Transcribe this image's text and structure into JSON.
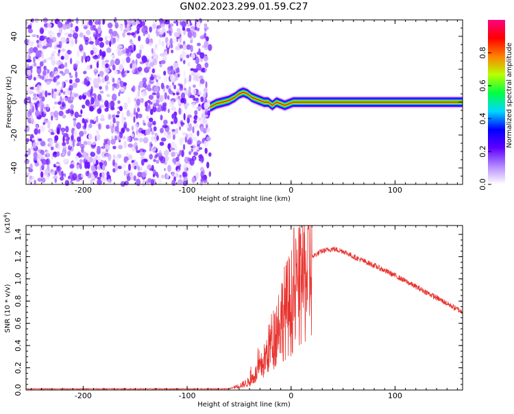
{
  "title": "GN02.2023.299.01.59.C27",
  "chart_data": [
    {
      "type": "heatmap",
      "title": "GN02.2023.299.01.59.C27",
      "xlabel": "Height of straight line (km)",
      "ylabel": "Frequency (Hz)",
      "xlim": [
        -255,
        165
      ],
      "ylim": [
        -50,
        50
      ],
      "xticks": [
        -200,
        -100,
        0,
        100
      ],
      "yticks": [
        -40,
        -20,
        0,
        20,
        40
      ],
      "noise_region_x": [
        -255,
        -78
      ],
      "signal_track": {
        "x": [
          -78,
          -72,
          -66,
          -60,
          -54,
          -50,
          -46,
          -42,
          -38,
          -34,
          -30,
          -26,
          -22,
          -18,
          -14,
          -10,
          -6,
          -2,
          2,
          165
        ],
        "freq": [
          -3,
          -1,
          0,
          1,
          3,
          5,
          6,
          5,
          3,
          2,
          1,
          0,
          0,
          -2,
          0,
          -1,
          -2,
          -1,
          0,
          0
        ]
      },
      "colorbar": {
        "label": "Normalized spectral amplitude",
        "range": [
          0,
          1
        ],
        "ticks": [
          0.0,
          0.2,
          0.4,
          0.6,
          0.8
        ],
        "tick_labels": [
          "0.0",
          "0.2",
          "0.4",
          "0.6",
          "0.8"
        ],
        "colors": [
          "#ffffff",
          "#b388ff",
          "#5e00ff",
          "#0000ff",
          "#00d8ff",
          "#00ff40",
          "#b8ff00",
          "#ff8000",
          "#ff0000",
          "#ff0080"
        ]
      }
    },
    {
      "type": "line",
      "xlabel": "Height of straight line (km)",
      "ylabel": "SNR (10 * v/v)",
      "multiplier_label": "(x10",
      "multiplier_exp": "4",
      "xlim": [
        -255,
        165
      ],
      "ylim": [
        0,
        1.48
      ],
      "xticks": [
        -200,
        -100,
        0,
        100
      ],
      "yticks": [
        0.0,
        0.2,
        0.4,
        0.6,
        0.8,
        1.0,
        1.2,
        1.4
      ],
      "ytick_labels": [
        "0.0",
        "0.2",
        "0.4",
        "0.6",
        "0.8",
        "1.0",
        "1.2",
        "1.4"
      ],
      "color": "#e8332f",
      "envelope": {
        "x": [
          -255,
          -60,
          -50,
          -40,
          -30,
          -25,
          -20,
          -15,
          -10,
          -5,
          0,
          5,
          10,
          15,
          20,
          30,
          40,
          50,
          60,
          80,
          100,
          120,
          140,
          165
        ],
        "y": [
          0.01,
          0.01,
          0.04,
          0.08,
          0.2,
          0.3,
          0.45,
          0.55,
          0.7,
          0.78,
          0.85,
          0.95,
          1.05,
          1.13,
          1.2,
          1.25,
          1.27,
          1.25,
          1.2,
          1.12,
          1.03,
          0.93,
          0.83,
          0.7
        ]
      }
    }
  ]
}
